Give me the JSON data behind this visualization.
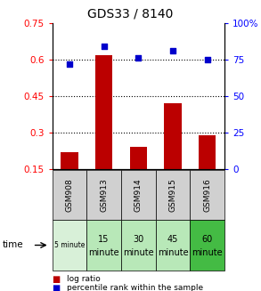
{
  "title": "GDS33 / 8140",
  "samples": [
    "GSM908",
    "GSM913",
    "GSM914",
    "GSM915",
    "GSM916"
  ],
  "time_labels_top": [
    "5 minute",
    "15",
    "30",
    "45",
    "60"
  ],
  "time_labels_bot": [
    "",
    "minute",
    "minute",
    "minute",
    "minute"
  ],
  "time_colors": [
    "#d8f0d8",
    "#b8e8b8",
    "#b8e8b8",
    "#b8e8b8",
    "#44bb44"
  ],
  "log_ratio_vals": [
    0.22,
    0.62,
    0.24,
    0.42,
    0.29
  ],
  "percentile_rank": [
    72,
    84,
    76,
    81,
    75
  ],
  "left_ylim": [
    0.15,
    0.75
  ],
  "left_yticks": [
    0.15,
    0.3,
    0.45,
    0.6,
    0.75
  ],
  "right_ylim": [
    0,
    100
  ],
  "right_yticks": [
    0,
    25,
    50,
    75,
    100
  ],
  "right_yticklabels": [
    "0",
    "25",
    "50",
    "75",
    "100%"
  ],
  "bar_color": "#bb0000",
  "scatter_color": "#0000cc",
  "dotted_lines": [
    0.3,
    0.45,
    0.6
  ],
  "sample_box_color": "#d0d0d0",
  "plot_bg": "#ffffff"
}
